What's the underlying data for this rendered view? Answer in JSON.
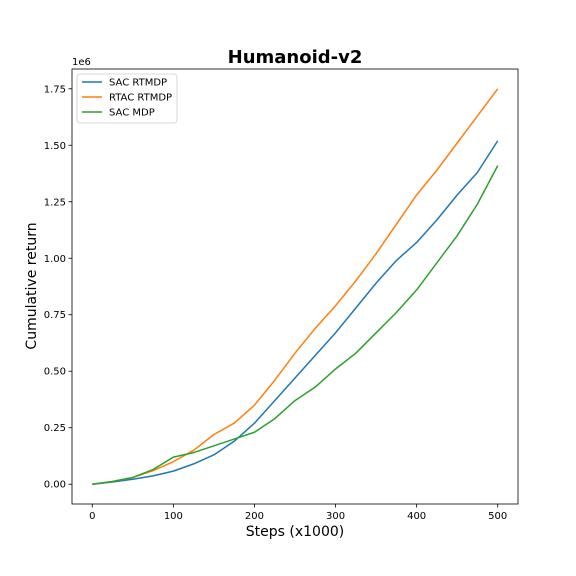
{
  "chart_data": {
    "type": "line",
    "title": "Humanoid-v2",
    "xlabel": "Steps (x1000)",
    "ylabel": "Cumulative return",
    "y_offset_text": "1e6",
    "xlim": [
      -25,
      525
    ],
    "ylim": [
      -0.0875,
      1.8375
    ],
    "x_ticks": [
      0,
      100,
      200,
      300,
      400,
      500
    ],
    "x_tick_labels": [
      "0",
      "100",
      "200",
      "300",
      "400",
      "500"
    ],
    "y_ticks": [
      0.0,
      0.25,
      0.5,
      0.75,
      1.0,
      1.25,
      1.5,
      1.75
    ],
    "y_tick_labels": [
      "0.00",
      "0.25",
      "0.50",
      "0.75",
      "1.00",
      "1.25",
      "1.50",
      "1.75"
    ],
    "grid": false,
    "legend_position": "top-left",
    "x": [
      0,
      25,
      50,
      75,
      100,
      125,
      150,
      175,
      200,
      225,
      250,
      275,
      300,
      325,
      350,
      375,
      400,
      425,
      450,
      475,
      500
    ],
    "series": [
      {
        "name": "SAC RTMDP",
        "color": "#1f77b4",
        "values": [
          0.0,
          0.01,
          0.022,
          0.037,
          0.058,
          0.09,
          0.13,
          0.19,
          0.27,
          0.37,
          0.47,
          0.57,
          0.67,
          0.78,
          0.89,
          0.99,
          1.07,
          1.17,
          1.28,
          1.38,
          1.52
        ]
      },
      {
        "name": "RTAC RTMDP",
        "color": "#ff7f0e",
        "values": [
          0.0,
          0.012,
          0.03,
          0.06,
          0.1,
          0.15,
          0.22,
          0.27,
          0.35,
          0.46,
          0.58,
          0.69,
          0.79,
          0.9,
          1.02,
          1.15,
          1.28,
          1.39,
          1.51,
          1.63,
          1.75
        ]
      },
      {
        "name": "SAC MDP",
        "color": "#2ca02c",
        "values": [
          0.0,
          0.012,
          0.03,
          0.065,
          0.12,
          0.14,
          0.17,
          0.2,
          0.23,
          0.29,
          0.37,
          0.43,
          0.51,
          0.58,
          0.67,
          0.76,
          0.86,
          0.98,
          1.1,
          1.24,
          1.41
        ]
      }
    ]
  }
}
